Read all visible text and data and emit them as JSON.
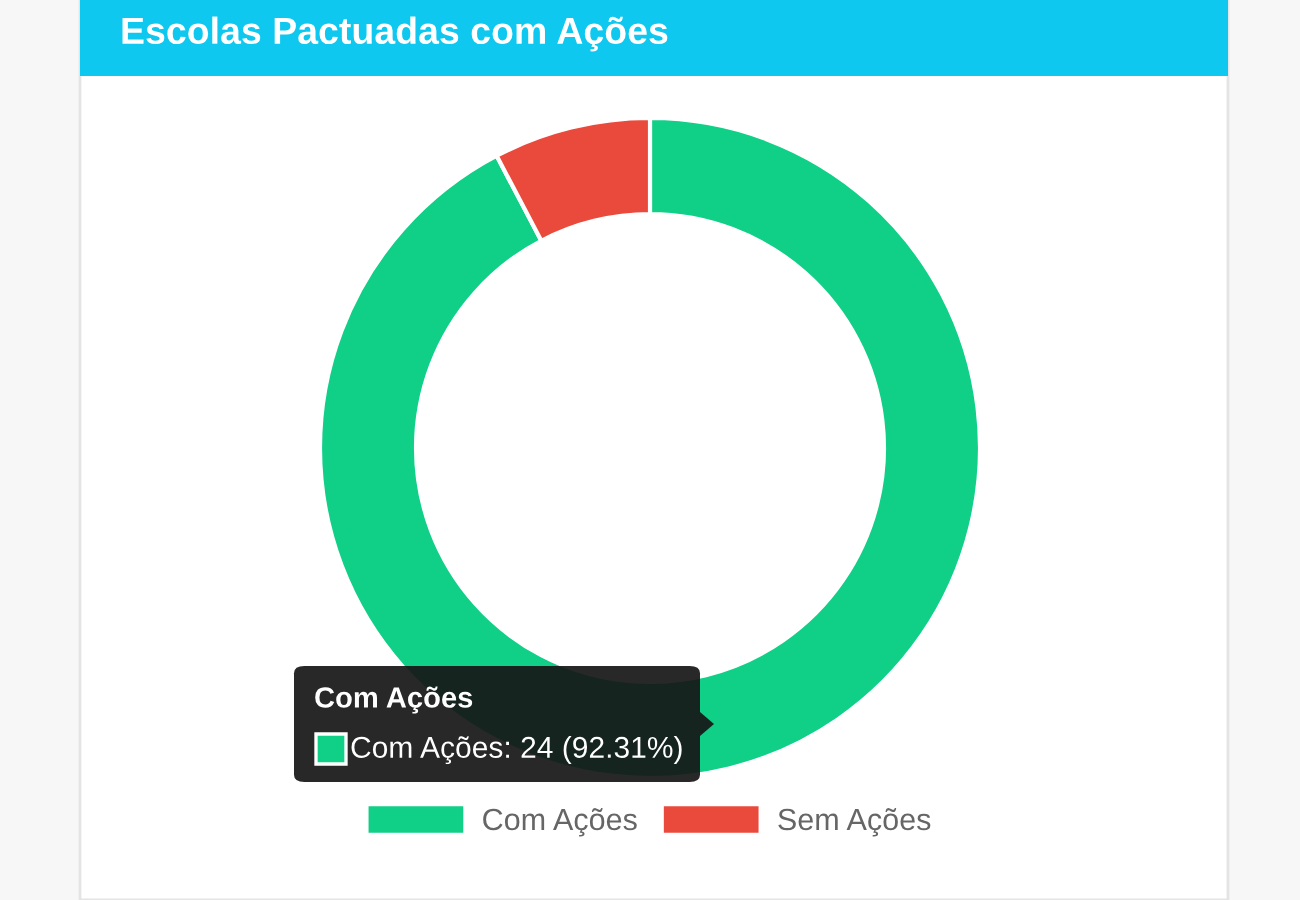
{
  "chart_data": {
    "type": "donut",
    "title": "Escolas Pactuadas com Ações",
    "categories": [
      "Com Ações",
      "Sem Ações"
    ],
    "values": [
      92.31,
      7.69
    ],
    "colors": [
      "#10cf87",
      "#ea4a3c"
    ],
    "legend": "bottom",
    "annotations": [
      "Com Ações",
      "Com Ações: 24 (92.31%)"
    ]
  }
}
